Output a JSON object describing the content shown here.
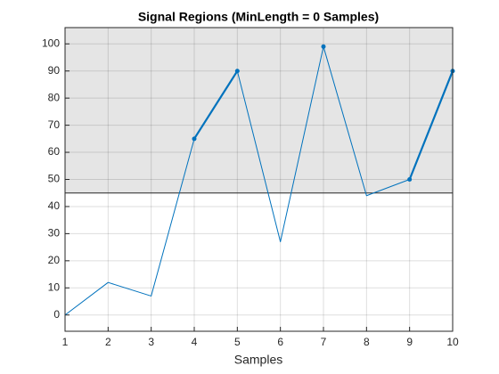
{
  "chart_data": {
    "type": "line",
    "title": "Signal Regions (MinLength = 0 Samples)",
    "xlabel": "Samples",
    "x": [
      1,
      2,
      3,
      4,
      5,
      6,
      7,
      8,
      9,
      10
    ],
    "series": [
      {
        "color": "#0072bd",
        "line_width": 1,
        "markers": false,
        "values": [
          0,
          12,
          7,
          65,
          90,
          27,
          99,
          44,
          50,
          90
        ]
      },
      {
        "color": "#0072bd",
        "line_width": 2.2,
        "markers": true,
        "values": [
          null,
          null,
          null,
          65,
          90,
          null,
          99,
          null,
          50,
          90
        ]
      }
    ],
    "threshold": 45,
    "shade_color": "#e5e5e5",
    "xlim": [
      1,
      10
    ],
    "xticks": [
      1,
      2,
      3,
      4,
      5,
      6,
      7,
      8,
      9,
      10
    ],
    "ylim": [
      -6,
      106
    ],
    "yticks": [
      0,
      10,
      20,
      30,
      40,
      50,
      60,
      70,
      80,
      90,
      100
    ],
    "grid": true
  }
}
